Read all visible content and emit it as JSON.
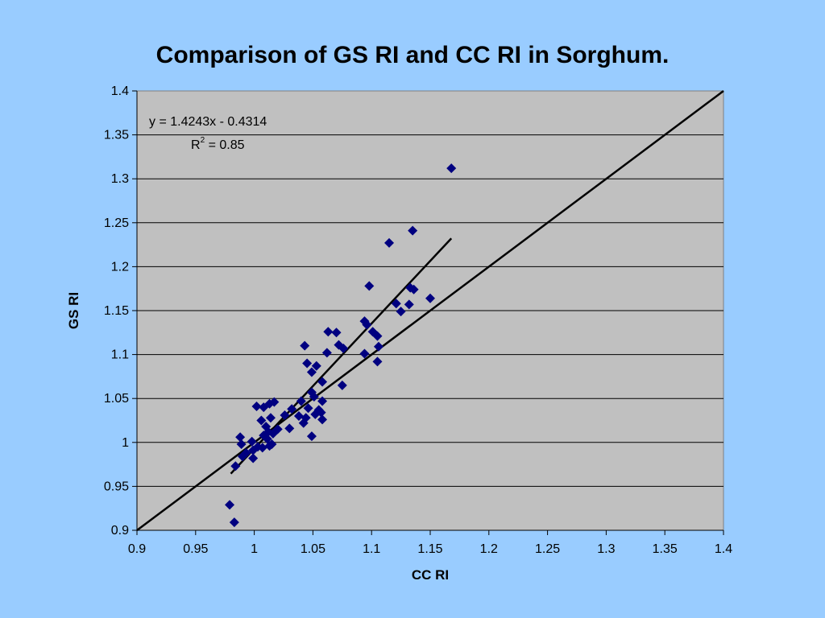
{
  "chart_data": {
    "type": "scatter",
    "title": "Comparison of GS RI and CC RI in Sorghum.",
    "xlabel": "CC RI",
    "ylabel": "GS RI",
    "xlim": [
      0.9,
      1.4
    ],
    "ylim": [
      0.9,
      1.4
    ],
    "x_ticks": [
      "0.9",
      "0.95",
      "1",
      "1.05",
      "1.1",
      "1.15",
      "1.2",
      "1.25",
      "1.3",
      "1.35",
      "1.4"
    ],
    "y_ticks": [
      "0.9",
      "0.95",
      "1",
      "1.05",
      "1.1",
      "1.15",
      "1.2",
      "1.25",
      "1.3",
      "1.35",
      "1.4"
    ],
    "grid": "horizontal",
    "plot_background": "#c0c0c0",
    "marker_color": "#000080",
    "marker": "diamond",
    "equation": "y = 1.4243x - 0.4314",
    "r2_label": "R",
    "r2_sup": "2",
    "r2_value": " = 0.85",
    "trendline": {
      "slope": 1.4243,
      "intercept": -0.4314,
      "x_range": [
        0.98,
        1.168
      ]
    },
    "reference_line": {
      "from": [
        0.9,
        0.9
      ],
      "to": [
        1.4,
        1.4
      ]
    },
    "series": [
      {
        "points": [
          [
            1.168,
            1.312
          ],
          [
            1.135,
            1.241
          ],
          [
            1.115,
            1.227
          ],
          [
            1.098,
            1.178
          ],
          [
            1.133,
            1.176
          ],
          [
            1.136,
            1.174
          ],
          [
            1.15,
            1.164
          ],
          [
            1.121,
            1.158
          ],
          [
            1.132,
            1.157
          ],
          [
            1.125,
            1.149
          ],
          [
            1.094,
            1.138
          ],
          [
            1.096,
            1.134
          ],
          [
            1.101,
            1.126
          ],
          [
            1.105,
            1.121
          ],
          [
            1.063,
            1.126
          ],
          [
            1.07,
            1.125
          ],
          [
            1.072,
            1.111
          ],
          [
            1.076,
            1.107
          ],
          [
            1.106,
            1.109
          ],
          [
            1.043,
            1.11
          ],
          [
            1.062,
            1.102
          ],
          [
            1.094,
            1.101
          ],
          [
            1.105,
            1.092
          ],
          [
            1.045,
            1.09
          ],
          [
            1.053,
            1.087
          ],
          [
            1.049,
            1.08
          ],
          [
            1.058,
            1.069
          ],
          [
            1.075,
            1.065
          ],
          [
            1.049,
            1.057
          ],
          [
            1.051,
            1.052
          ],
          [
            1.04,
            1.047
          ],
          [
            1.058,
            1.047
          ],
          [
            1.017,
            1.046
          ],
          [
            1.013,
            1.044
          ],
          [
            1.002,
            1.041
          ],
          [
            1.008,
            1.04
          ],
          [
            1.032,
            1.038
          ],
          [
            1.046,
            1.039
          ],
          [
            1.055,
            1.037
          ],
          [
            1.057,
            1.034
          ],
          [
            1.052,
            1.032
          ],
          [
            1.026,
            1.031
          ],
          [
            1.038,
            1.03
          ],
          [
            1.044,
            1.028
          ],
          [
            1.014,
            1.028
          ],
          [
            1.058,
            1.026
          ],
          [
            1.006,
            1.025
          ],
          [
            1.042,
            1.022
          ],
          [
            1.01,
            1.018
          ],
          [
            1.02,
            1.015
          ],
          [
            1.03,
            1.016
          ],
          [
            1.012,
            1.012
          ],
          [
            1.016,
            1.01
          ],
          [
            1.008,
            1.008
          ],
          [
            0.988,
            1.006
          ],
          [
            1.049,
            1.007
          ],
          [
            1.011,
            1.004
          ],
          [
            0.998,
            1.001
          ],
          [
            0.989,
            0.998
          ],
          [
            1.015,
            0.998
          ],
          [
            1.013,
            0.996
          ],
          [
            1.003,
            0.995
          ],
          [
            1.007,
            0.994
          ],
          [
            0.999,
            0.991
          ],
          [
            0.993,
            0.988
          ],
          [
            0.99,
            0.984
          ],
          [
            0.999,
            0.982
          ],
          [
            0.984,
            0.973
          ],
          [
            0.979,
            0.929
          ],
          [
            0.983,
            0.909
          ]
        ]
      }
    ]
  }
}
